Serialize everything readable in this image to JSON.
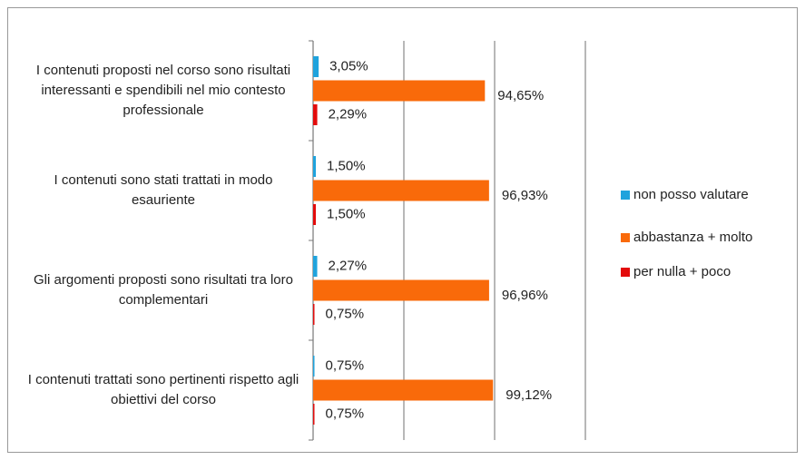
{
  "chart_data": {
    "type": "bar",
    "orientation": "horizontal",
    "categories": [
      "I contenuti proposti nel corso sono risultati interessanti e spendibili nel mio contesto professionale",
      "I contenuti sono stati trattati in modo esauriente",
      "Gli argomenti proposti sono risultati tra loro complementari",
      "I contenuti trattati sono pertinenti rispetto agli obiettivi del corso"
    ],
    "series": [
      {
        "name": "non posso valutare",
        "color": "#1fa3dd",
        "values": [
          3.05,
          1.5,
          2.27,
          0.75
        ],
        "value_labels": [
          "3,05%",
          "1,50%",
          "2,27%",
          "0,75%"
        ]
      },
      {
        "name": "abbastanza + molto",
        "color": "#f96a0a",
        "values": [
          94.65,
          96.93,
          96.96,
          99.12
        ],
        "value_labels": [
          "94,65%",
          "96,93%",
          "96,96%",
          "99,12%"
        ]
      },
      {
        "name": "per nulla + poco",
        "color": "#e30b0b",
        "values": [
          2.29,
          1.5,
          0.75,
          0.75
        ],
        "value_labels": [
          "2,29%",
          "1,50%",
          "0,75%",
          "0,75%"
        ]
      }
    ],
    "xlim": [
      0,
      150
    ],
    "xticks": [
      0,
      50,
      100,
      150
    ],
    "grid": true,
    "legend": "right"
  }
}
